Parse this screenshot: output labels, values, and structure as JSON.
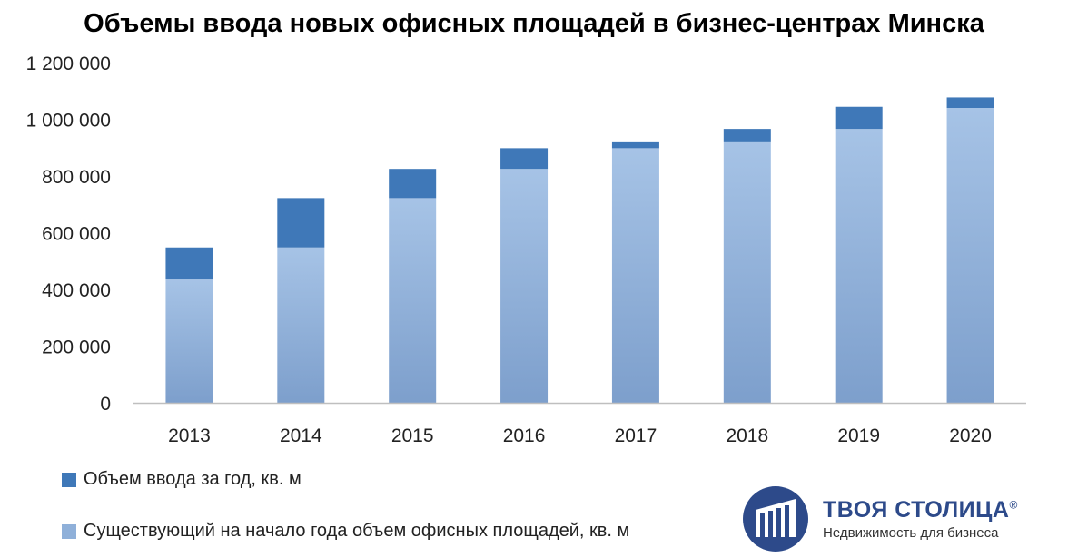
{
  "colors": {
    "existing": "#8fb0d9",
    "existing_dark": "#7a9dcc",
    "added": "#3f78b8",
    "axis": "#bfbfbf",
    "logo_blue": "#2d4a8a"
  },
  "chart_data": {
    "type": "bar",
    "stacked": true,
    "title": "Объемы ввода новых офисных площадей в бизнес-центрах Минска",
    "categories": [
      "2013",
      "2014",
      "2015",
      "2016",
      "2017",
      "2018",
      "2019",
      "2020"
    ],
    "series": [
      {
        "name": "Существующий на начало года объем офисных площадей, кв. м",
        "values": [
          435000,
          548000,
          722000,
          825000,
          898000,
          922000,
          966000,
          1040000
        ]
      },
      {
        "name": "Объем ввода за год, кв. м",
        "values": [
          113000,
          174000,
          103000,
          73000,
          24000,
          44000,
          78000,
          37000
        ]
      }
    ],
    "ylim": [
      0,
      1200000
    ],
    "yticks": [
      0,
      200000,
      400000,
      600000,
      800000,
      1000000,
      1200000
    ],
    "ytick_labels": [
      "0",
      "200 000",
      "400 000",
      "600 000",
      "800 000",
      "1 000 000",
      "1 200 000"
    ],
    "grid": false,
    "legend_position": "bottom-left"
  },
  "legend": {
    "added_label": "Объем ввода за год, кв. м",
    "existing_label": "Существующий на начало года объем офисных площадей, кв. м"
  },
  "logo": {
    "name": "ТВОЯ СТОЛИЦА",
    "registered": "®",
    "tagline": "Недвижимость для бизнеса"
  }
}
